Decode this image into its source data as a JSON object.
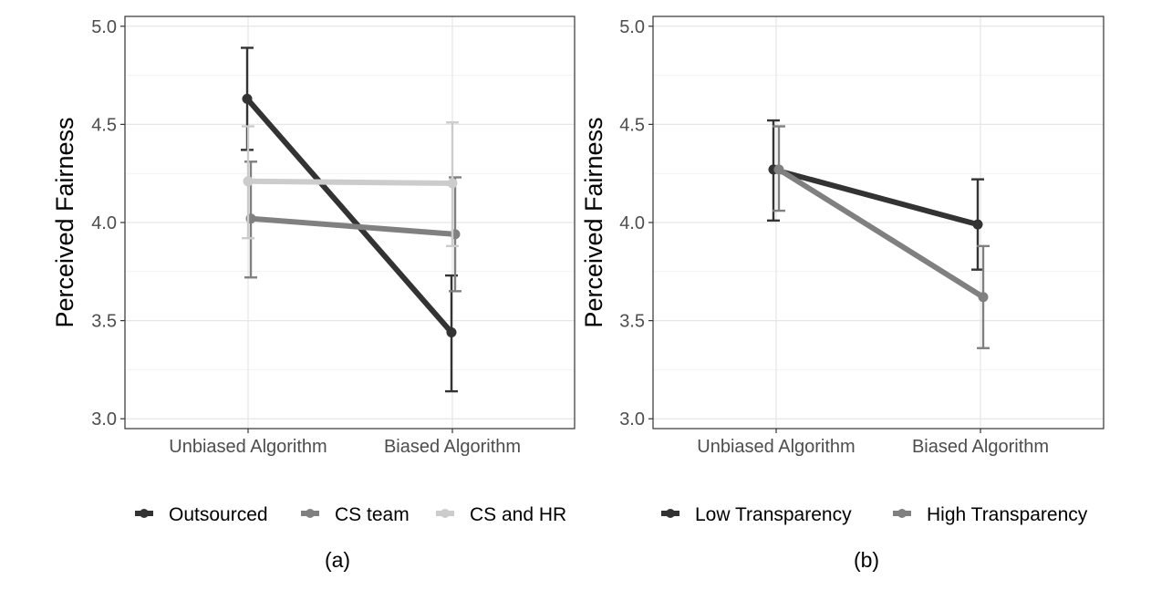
{
  "chart_data": [
    {
      "type": "line",
      "caption": "(a)",
      "ylabel": "Perceived Fairness",
      "xlabel": "",
      "categories": [
        "Unbiased Algorithm",
        "Biased Algorithm"
      ],
      "ylim": [
        2.95,
        5.05
      ],
      "yticks": [
        3.0,
        3.5,
        4.0,
        4.5,
        5.0
      ],
      "ytick_labels": [
        "3.0",
        "3.5",
        "4.0",
        "4.5",
        "5.0"
      ],
      "grid": true,
      "legend_position": "bottom",
      "series": [
        {
          "name": "Outsourced",
          "values": [
            4.63,
            3.44
          ],
          "error_low": [
            4.37,
            3.14
          ],
          "error_high": [
            4.89,
            3.73
          ],
          "color": "#333333"
        },
        {
          "name": "CS team",
          "values": [
            4.02,
            3.94
          ],
          "error_low": [
            3.72,
            3.65
          ],
          "error_high": [
            4.31,
            4.23
          ],
          "color": "#808080"
        },
        {
          "name": "CS and HR",
          "values": [
            4.21,
            4.2
          ],
          "error_low": [
            3.92,
            3.88
          ],
          "error_high": [
            4.49,
            4.51
          ],
          "color": "#cccccc"
        }
      ]
    },
    {
      "type": "line",
      "caption": "(b)",
      "ylabel": "Perceived Fairness",
      "xlabel": "",
      "categories": [
        "Unbiased Algorithm",
        "Biased Algorithm"
      ],
      "ylim": [
        2.95,
        5.05
      ],
      "yticks": [
        3.0,
        3.5,
        4.0,
        4.5,
        5.0
      ],
      "ytick_labels": [
        "3.0",
        "3.5",
        "4.0",
        "4.5",
        "5.0"
      ],
      "grid": true,
      "legend_position": "bottom",
      "series": [
        {
          "name": "Low Transparency",
          "values": [
            4.27,
            3.99
          ],
          "error_low": [
            4.01,
            3.76
          ],
          "error_high": [
            4.52,
            4.22
          ],
          "color": "#333333"
        },
        {
          "name": "High Transparency",
          "values": [
            4.27,
            3.62
          ],
          "error_low": [
            4.06,
            3.36
          ],
          "error_high": [
            4.49,
            3.88
          ],
          "color": "#808080"
        }
      ]
    }
  ]
}
